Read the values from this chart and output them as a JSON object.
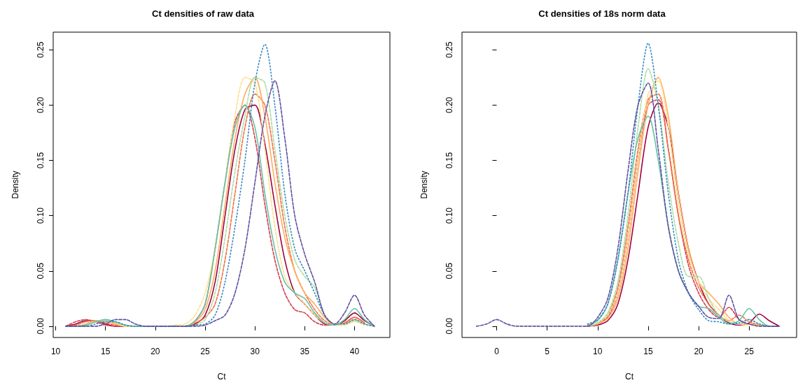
{
  "chart_data": [
    {
      "type": "line",
      "title": "Ct densities of raw data",
      "xlabel": "Ct",
      "ylabel": "Density",
      "grid": false,
      "marker": "none",
      "xlim": [
        9.75,
        43.55
      ],
      "ylim": [
        -0.0102,
        0.266
      ],
      "xticks": [
        10,
        15,
        20,
        25,
        30,
        35,
        40
      ],
      "yticks": [
        {
          "value": 0,
          "label": "0.00"
        },
        {
          "value": 0.05,
          "label": "0.05"
        },
        {
          "value": 0.1,
          "label": "0.10"
        },
        {
          "value": 0.15,
          "label": "0.15"
        },
        {
          "value": 0.2,
          "label": "0.20"
        },
        {
          "value": 0.25,
          "label": "0.25"
        }
      ],
      "x": [
        11,
        12,
        13,
        14,
        15,
        16,
        17,
        18,
        19,
        20,
        21,
        22,
        23,
        24,
        25,
        26,
        27,
        28,
        29,
        30,
        31,
        32,
        33,
        34,
        35,
        36,
        37,
        38,
        39,
        40,
        41,
        42
      ],
      "series": [
        {
          "color": "#9e0142",
          "line_style": "solid",
          "values": [
            0,
            0.002,
            0.005,
            0.005,
            0.002,
            0,
            0,
            0,
            0,
            0,
            0,
            0,
            0,
            0.002,
            0.01,
            0.04,
            0.1,
            0.16,
            0.196,
            0.2,
            0.165,
            0.11,
            0.06,
            0.03,
            0.02,
            0.01,
            0.002,
            0.001,
            0.005,
            0.012,
            0.005,
            0
          ]
        },
        {
          "color": "#d53e4f",
          "line_style": "dashed",
          "values": [
            0,
            0.004,
            0.006,
            0.004,
            0.001,
            0,
            0,
            0,
            0,
            0,
            0,
            0,
            0,
            0.005,
            0.02,
            0.07,
            0.13,
            0.185,
            0.2,
            0.17,
            0.11,
            0.06,
            0.03,
            0.015,
            0.012,
            0.004,
            0.001,
            0.001,
            0.003,
            0.008,
            0.003,
            null
          ]
        },
        {
          "color": "#f46d43",
          "line_style": "dashed",
          "values": [
            0,
            0.001,
            0.004,
            0.005,
            0.003,
            0.001,
            0,
            0,
            0,
            0,
            0,
            0,
            0,
            0.003,
            0.008,
            0.02,
            0.06,
            0.12,
            0.18,
            0.21,
            0.2,
            0.15,
            0.09,
            0.05,
            0.03,
            0.015,
            0.005,
            0.001,
            0.003,
            0.008,
            0.003,
            null
          ]
        },
        {
          "color": "#fdae61",
          "line_style": "solid",
          "values": [
            0,
            0,
            0.002,
            0.005,
            0.005,
            0.002,
            0,
            0,
            0,
            0,
            0,
            0,
            0,
            0.004,
            0.015,
            0.05,
            0.11,
            0.17,
            0.21,
            0.225,
            0.19,
            0.13,
            0.08,
            0.05,
            0.03,
            0.02,
            0.008,
            0.001,
            0.002,
            0.006,
            0.002,
            0
          ]
        },
        {
          "color": "#fee08b",
          "line_style": "dashed",
          "values": [
            null,
            0,
            0.001,
            0.004,
            0.006,
            0.003,
            0,
            0,
            0,
            0,
            0,
            0.001,
            0.002,
            0.01,
            0.03,
            0.07,
            0.13,
            0.19,
            0.225,
            0.22,
            0.16,
            0.09,
            0.045,
            0.03,
            0.02,
            0.01,
            0.003,
            0.001,
            0.001,
            0.004,
            0.001,
            null
          ]
        },
        {
          "color": "#abdda4",
          "line_style": "dashed",
          "values": [
            null,
            0,
            0.001,
            0.004,
            0.005,
            0.003,
            0.001,
            0,
            0,
            0,
            0,
            0,
            0,
            0.001,
            0.006,
            0.03,
            0.08,
            0.14,
            0.19,
            0.225,
            0.22,
            0.16,
            0.1,
            0.06,
            0.045,
            0.035,
            0.01,
            0.002,
            0.002,
            0.005,
            0.002,
            0
          ]
        },
        {
          "color": "#66c2a5",
          "line_style": "solid",
          "values": [
            0,
            0,
            0.001,
            0.004,
            0.006,
            0.004,
            0.001,
            0,
            0,
            0,
            0,
            0,
            0,
            0.005,
            0.02,
            0.07,
            0.13,
            0.18,
            0.2,
            0.18,
            0.12,
            0.07,
            0.04,
            0.03,
            0.025,
            0.012,
            0.003,
            0.001,
            0.006,
            0.016,
            0.006,
            0
          ]
        },
        {
          "color": "#3288bd",
          "line_style": "dotted",
          "values": [
            0,
            0,
            0,
            0.002,
            0.004,
            0.004,
            0.001,
            0,
            0,
            0,
            0,
            0,
            0,
            0.001,
            0.002,
            0.01,
            0.04,
            0.09,
            0.15,
            0.22,
            0.255,
            0.2,
            0.12,
            0.07,
            0.05,
            0.03,
            0.01,
            0.002,
            0.002,
            0.006,
            0.002,
            0
          ]
        },
        {
          "color": "#5e4fa2",
          "line_style": "dashed",
          "values": [
            0,
            0,
            0,
            0,
            0.002,
            0.006,
            0.006,
            0.002,
            0,
            0,
            0,
            0,
            0,
            0,
            0.001,
            0.005,
            0.01,
            0.03,
            0.07,
            0.13,
            0.19,
            0.222,
            0.17,
            0.1,
            0.065,
            0.04,
            0.01,
            0.002,
            0.012,
            0.028,
            0.01,
            0
          ]
        }
      ]
    },
    {
      "type": "line",
      "title": "Ct densities of 18s norm data",
      "xlabel": "Ct",
      "ylabel": "Density",
      "grid": false,
      "marker": "none",
      "xlim": [
        -3.43,
        29.7
      ],
      "ylim": [
        -0.0102,
        0.266
      ],
      "xticks": [
        0,
        5,
        10,
        15,
        20,
        25
      ],
      "yticks": [
        {
          "value": 0,
          "label": "0.00"
        },
        {
          "value": 0.05,
          "label": "0.05"
        },
        {
          "value": 0.1,
          "label": "0.10"
        },
        {
          "value": 0.15,
          "label": "0.15"
        },
        {
          "value": 0.2,
          "label": "0.20"
        },
        {
          "value": 0.25,
          "label": "0.25"
        }
      ],
      "x": [
        -2,
        -1,
        0,
        1,
        2,
        3,
        4,
        5,
        6,
        7,
        8,
        9,
        10,
        11,
        12,
        13,
        14,
        15,
        16,
        17,
        18,
        19,
        20,
        21,
        22,
        23,
        24,
        25,
        26,
        27,
        28
      ],
      "series": [
        {
          "color": "#9e0142",
          "line_style": "solid",
          "values": [
            null,
            null,
            null,
            null,
            null,
            null,
            null,
            null,
            null,
            null,
            null,
            0,
            0.001,
            0.005,
            0.02,
            0.06,
            0.12,
            0.18,
            0.202,
            0.18,
            0.12,
            0.07,
            0.04,
            0.02,
            0.01,
            0.003,
            0.001,
            0.003,
            0.011,
            0.005,
            0
          ]
        },
        {
          "color": "#d53e4f",
          "line_style": "dashed",
          "values": [
            null,
            null,
            null,
            null,
            null,
            null,
            null,
            null,
            null,
            null,
            null,
            0,
            0.002,
            0.008,
            0.03,
            0.08,
            0.15,
            0.2,
            0.205,
            0.16,
            0.1,
            0.055,
            0.03,
            0.015,
            0.008,
            0.017,
            0.006,
            0.002,
            0.001,
            0,
            0
          ]
        },
        {
          "color": "#f46d43",
          "line_style": "dashed",
          "values": [
            null,
            null,
            null,
            null,
            null,
            null,
            null,
            null,
            null,
            null,
            null,
            0,
            0.002,
            0.01,
            0.035,
            0.09,
            0.16,
            0.205,
            0.21,
            0.16,
            0.1,
            0.06,
            0.035,
            0.02,
            0.01,
            0.005,
            0.01,
            0.004,
            0.001,
            null,
            null
          ]
        },
        {
          "color": "#fdae61",
          "line_style": "solid",
          "values": [
            null,
            null,
            null,
            null,
            null,
            null,
            null,
            null,
            null,
            null,
            null,
            0,
            0.002,
            0.007,
            0.025,
            0.07,
            0.14,
            0.2,
            0.225,
            0.19,
            0.12,
            0.07,
            0.04,
            0.03,
            0.02,
            0.008,
            0.002,
            0.002,
            0.001,
            0,
            0
          ]
        },
        {
          "color": "#fee08b",
          "line_style": "dashed",
          "values": [
            null,
            null,
            null,
            null,
            null,
            null,
            null,
            null,
            null,
            null,
            null,
            null,
            0.003,
            0.01,
            0.03,
            0.08,
            0.15,
            0.21,
            0.222,
            0.18,
            0.11,
            0.065,
            0.04,
            0.025,
            0.015,
            0.005,
            0.002,
            0.001,
            null,
            null,
            null
          ]
        },
        {
          "color": "#abdda4",
          "line_style": "dashed",
          "values": [
            null,
            null,
            null,
            null,
            null,
            null,
            null,
            null,
            null,
            null,
            null,
            0,
            0.003,
            0.012,
            0.04,
            0.1,
            0.18,
            0.233,
            0.2,
            0.13,
            0.075,
            0.045,
            0.045,
            0.025,
            0.01,
            0.004,
            0.002,
            0.006,
            0.002,
            0,
            null
          ]
        },
        {
          "color": "#66c2a5",
          "line_style": "solid",
          "values": [
            null,
            null,
            null,
            null,
            null,
            null,
            null,
            null,
            null,
            null,
            null,
            0.001,
            0.005,
            0.02,
            0.06,
            0.12,
            0.17,
            0.19,
            0.15,
            0.09,
            0.05,
            0.03,
            0.018,
            0.016,
            0.008,
            0.002,
            0.005,
            0.016,
            0.006,
            0,
            0
          ]
        },
        {
          "color": "#3288bd",
          "line_style": "dotted",
          "values": [
            null,
            null,
            null,
            null,
            null,
            null,
            null,
            null,
            null,
            null,
            null,
            0.002,
            0.006,
            0.02,
            0.06,
            0.12,
            0.2,
            0.256,
            0.2,
            0.12,
            0.06,
            0.03,
            0.015,
            0.005,
            0.004,
            0.002,
            0.003,
            0.006,
            0.002,
            0,
            0
          ]
        },
        {
          "color": "#5e4fa2",
          "line_style": "dashed",
          "values": [
            0,
            0.002,
            0.006,
            0.002,
            0,
            0,
            0,
            0,
            0,
            0,
            0,
            0,
            0.008,
            0.025,
            0.07,
            0.14,
            0.2,
            0.22,
            0.16,
            0.09,
            0.05,
            0.03,
            0.018,
            0.008,
            0.007,
            0.028,
            0.006,
            0.002,
            0,
            0,
            0
          ]
        }
      ]
    }
  ]
}
